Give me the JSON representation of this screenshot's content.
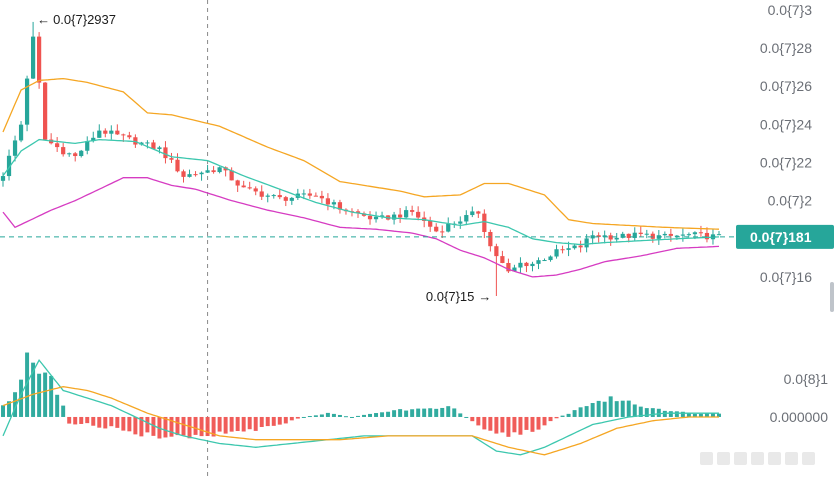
{
  "chart_data": {
    "type": "candlestick",
    "title": "",
    "theme": {
      "up_color": "#26a69a",
      "down_color": "#ef5350",
      "upper_band_color": "#f5a623",
      "middle_band_color": "#3cc7ae",
      "lower_band_color": "#d63cc2",
      "macd_color": "#3cc7ae",
      "signal_color": "#f5a623",
      "crosshair_color": "#8a8a8a",
      "current_price_color": "#26a69a",
      "axis_text_color": "#6b6f76"
    },
    "price_axis": {
      "ylim": [
        15.0,
        30.1
      ],
      "ticks": [
        {
          "value": 30,
          "label": "0.0{7}3"
        },
        {
          "value": 28,
          "label": "0.0{7}28"
        },
        {
          "value": 26,
          "label": "0.0{7}26"
        },
        {
          "value": 24,
          "label": "0.0{7}24"
        },
        {
          "value": 22,
          "label": "0.0{7}22"
        },
        {
          "value": 20,
          "label": "0.0{7}2"
        },
        {
          "value": 16,
          "label": "0.0{7}16"
        }
      ]
    },
    "current_price": {
      "value": 18.1,
      "label": "0.0{7}181"
    },
    "annotations": {
      "high": {
        "value": 29.37,
        "label": "0.0{7}2937",
        "arrow": "←"
      },
      "low": {
        "value": 15.0,
        "label": "0.0{7}15",
        "arrow": "→"
      }
    },
    "candle_count": 120,
    "crosshair_index": 34,
    "price_path": [
      [
        0,
        21.4
      ],
      [
        3,
        24.0
      ],
      [
        5,
        29.0
      ],
      [
        7,
        23.2
      ],
      [
        10,
        22.6
      ],
      [
        12,
        22.3
      ],
      [
        16,
        23.7
      ],
      [
        22,
        23.1
      ],
      [
        26,
        22.7
      ],
      [
        30,
        21.3
      ],
      [
        36,
        21.7
      ],
      [
        40,
        20.6
      ],
      [
        46,
        20.1
      ],
      [
        52,
        20.3
      ],
      [
        56,
        19.6
      ],
      [
        62,
        19.0
      ],
      [
        68,
        19.4
      ],
      [
        72,
        18.4
      ],
      [
        76,
        19.0
      ],
      [
        79,
        19.4
      ],
      [
        81,
        17.6
      ],
      [
        84,
        16.2
      ],
      [
        86,
        16.7
      ],
      [
        88,
        16.7
      ],
      [
        92,
        17.3
      ],
      [
        96,
        17.6
      ],
      [
        98,
        18.2
      ],
      [
        102,
        18.1
      ],
      [
        106,
        18.2
      ],
      [
        110,
        18.1
      ],
      [
        114,
        18.2
      ],
      [
        119,
        18.1
      ]
    ],
    "bollinger": {
      "upper": [
        [
          0,
          23.6
        ],
        [
          3,
          25.8
        ],
        [
          6,
          26.3
        ],
        [
          10,
          26.4
        ],
        [
          14,
          26.2
        ],
        [
          20,
          25.7
        ],
        [
          24,
          24.6
        ],
        [
          28,
          24.5
        ],
        [
          32,
          24.2
        ],
        [
          36,
          23.9
        ],
        [
          44,
          22.8
        ],
        [
          50,
          22.1
        ],
        [
          56,
          21.0
        ],
        [
          60,
          20.8
        ],
        [
          66,
          20.5
        ],
        [
          70,
          20.2
        ],
        [
          76,
          20.3
        ],
        [
          80,
          20.9
        ],
        [
          84,
          20.9
        ],
        [
          90,
          20.3
        ],
        [
          94,
          19.0
        ],
        [
          98,
          18.8
        ],
        [
          104,
          18.7
        ],
        [
          110,
          18.6
        ],
        [
          119,
          18.5
        ]
      ],
      "middle": [
        [
          0,
          21.3
        ],
        [
          3,
          22.6
        ],
        [
          6,
          23.2
        ],
        [
          12,
          23.0
        ],
        [
          16,
          23.2
        ],
        [
          22,
          23.1
        ],
        [
          28,
          22.3
        ],
        [
          34,
          22.1
        ],
        [
          40,
          21.3
        ],
        [
          46,
          20.6
        ],
        [
          52,
          19.9
        ],
        [
          58,
          19.4
        ],
        [
          64,
          19.1
        ],
        [
          70,
          19.0
        ],
        [
          76,
          18.7
        ],
        [
          80,
          18.9
        ],
        [
          84,
          18.6
        ],
        [
          88,
          18.0
        ],
        [
          92,
          17.8
        ],
        [
          96,
          17.7
        ],
        [
          100,
          17.8
        ],
        [
          106,
          17.9
        ],
        [
          112,
          18.0
        ],
        [
          119,
          18.1
        ]
      ],
      "lower": [
        [
          0,
          19.4
        ],
        [
          2,
          18.6
        ],
        [
          4,
          18.9
        ],
        [
          8,
          19.5
        ],
        [
          12,
          20.0
        ],
        [
          16,
          20.6
        ],
        [
          20,
          21.2
        ],
        [
          24,
          21.2
        ],
        [
          28,
          20.8
        ],
        [
          32,
          20.6
        ],
        [
          38,
          20.0
        ],
        [
          44,
          19.5
        ],
        [
          50,
          19.1
        ],
        [
          56,
          18.6
        ],
        [
          62,
          18.5
        ],
        [
          68,
          18.3
        ],
        [
          72,
          18.0
        ],
        [
          76,
          17.4
        ],
        [
          80,
          17.0
        ],
        [
          84,
          16.4
        ],
        [
          88,
          16.0
        ],
        [
          92,
          16.1
        ],
        [
          96,
          16.4
        ],
        [
          100,
          16.8
        ],
        [
          106,
          17.1
        ],
        [
          112,
          17.5
        ],
        [
          119,
          17.6
        ]
      ]
    },
    "macd_axis": {
      "ylim": [
        -0.14,
        0.19
      ],
      "ticks": [
        {
          "value": 0.1,
          "label": "0.0{8}1"
        },
        {
          "value": 0.0,
          "label": "0.000000"
        }
      ]
    },
    "macd": {
      "histogram_profile": [
        [
          0,
          0.03
        ],
        [
          2,
          0.06
        ],
        [
          4,
          0.17
        ],
        [
          6,
          0.14
        ],
        [
          8,
          0.11
        ],
        [
          10,
          0.03
        ],
        [
          11,
          -0.02
        ],
        [
          14,
          -0.02
        ],
        [
          18,
          -0.03
        ],
        [
          24,
          -0.05
        ],
        [
          30,
          -0.06
        ],
        [
          35,
          -0.05
        ],
        [
          40,
          -0.04
        ],
        [
          46,
          -0.02
        ],
        [
          50,
          0.0
        ],
        [
          54,
          0.01
        ],
        [
          58,
          0.0
        ],
        [
          62,
          0.01
        ],
        [
          66,
          0.02
        ],
        [
          70,
          0.02
        ],
        [
          74,
          0.03
        ],
        [
          77,
          0.0
        ],
        [
          80,
          -0.03
        ],
        [
          84,
          -0.05
        ],
        [
          88,
          -0.04
        ],
        [
          91,
          -0.01
        ],
        [
          94,
          0.01
        ],
        [
          98,
          0.04
        ],
        [
          102,
          0.05
        ],
        [
          106,
          0.03
        ],
        [
          110,
          0.02
        ],
        [
          114,
          0.01
        ],
        [
          119,
          0.01
        ]
      ],
      "macd_line": [
        [
          0,
          -0.05
        ],
        [
          3,
          0.06
        ],
        [
          6,
          0.15
        ],
        [
          10,
          0.07
        ],
        [
          14,
          0.05
        ],
        [
          18,
          0.03
        ],
        [
          22,
          0.0
        ],
        [
          26,
          -0.03
        ],
        [
          30,
          -0.05
        ],
        [
          36,
          -0.07
        ],
        [
          42,
          -0.08
        ],
        [
          48,
          -0.07
        ],
        [
          54,
          -0.06
        ],
        [
          60,
          -0.05
        ],
        [
          66,
          -0.05
        ],
        [
          72,
          -0.05
        ],
        [
          78,
          -0.05
        ],
        [
          82,
          -0.09
        ],
        [
          86,
          -0.1
        ],
        [
          90,
          -0.08
        ],
        [
          94,
          -0.05
        ],
        [
          98,
          -0.02
        ],
        [
          104,
          0.0
        ],
        [
          110,
          0.01
        ],
        [
          119,
          0.01
        ]
      ],
      "signal_line": [
        [
          0,
          0.03
        ],
        [
          5,
          0.06
        ],
        [
          10,
          0.08
        ],
        [
          14,
          0.07
        ],
        [
          18,
          0.05
        ],
        [
          24,
          0.01
        ],
        [
          30,
          -0.02
        ],
        [
          36,
          -0.05
        ],
        [
          42,
          -0.06
        ],
        [
          48,
          -0.06
        ],
        [
          56,
          -0.06
        ],
        [
          64,
          -0.05
        ],
        [
          72,
          -0.05
        ],
        [
          78,
          -0.05
        ],
        [
          84,
          -0.08
        ],
        [
          90,
          -0.1
        ],
        [
          96,
          -0.07
        ],
        [
          102,
          -0.03
        ],
        [
          108,
          -0.01
        ],
        [
          114,
          0.0
        ],
        [
          119,
          0.0
        ]
      ]
    }
  }
}
